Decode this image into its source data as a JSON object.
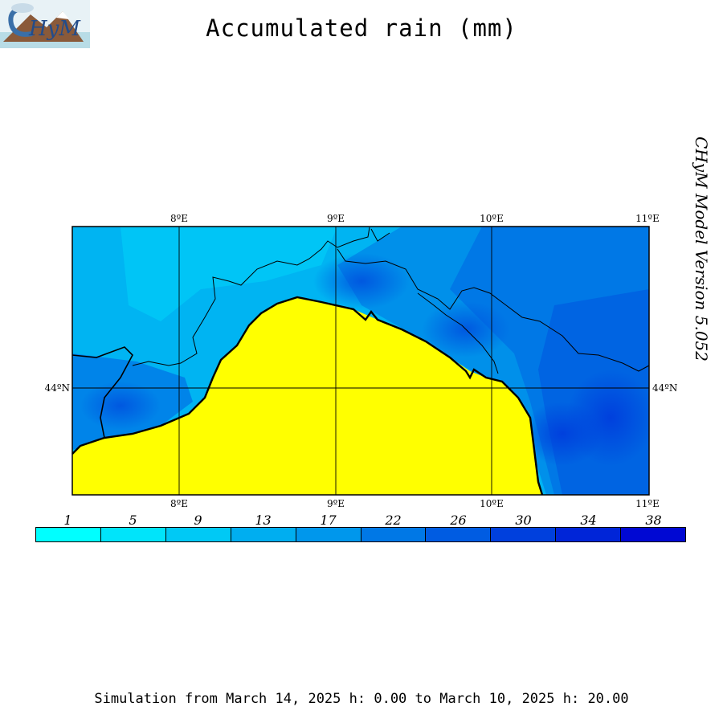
{
  "title": "Accumulated rain (mm)",
  "logo_text": "CHyM",
  "version_label": "CHyM Model Version 5.052",
  "map": {
    "lon_labels": [
      "8ºE",
      "9ºE",
      "10ºE",
      "11ºE"
    ],
    "lat_label": "44ºN",
    "land_color": "#ffff00",
    "sea_color": "#00a8f0"
  },
  "colorbar": {
    "labels": [
      "1",
      "5",
      "9",
      "13",
      "17",
      "22",
      "26",
      "30",
      "34",
      "38"
    ],
    "colors": [
      "#00ffff",
      "#00e4fa",
      "#00c9f5",
      "#00aef0",
      "#0097ec",
      "#0078e6",
      "#005ce2",
      "#0040dd",
      "#0025d8",
      "#0008d3"
    ]
  },
  "footer": "Simulation from March 14, 2025 h: 0.00 to March 10, 2025 h: 20.00"
}
